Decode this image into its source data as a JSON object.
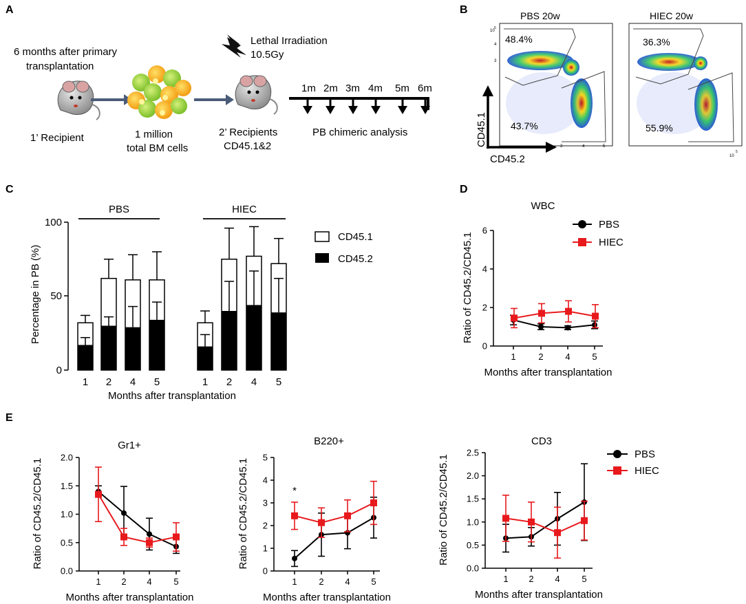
{
  "panels": {
    "a": "A",
    "b": "B",
    "c": "C",
    "d": "D",
    "e": "E"
  },
  "schematic": {
    "primary_note_line1": "6 months after primary",
    "primary_note_line2": "transplantation",
    "recipient1": "1’ Recipient",
    "cells_line1": "1 million",
    "cells_line2": "total BM cells",
    "irradiation_line1": "Lethal Irradiation",
    "irradiation_line2": "10.5Gy",
    "recipient2_line1": "2’ Recipients",
    "recipient2_line2": "CD45.1&2",
    "timepoints": [
      "1m",
      "2m",
      "3m",
      "4m",
      "5m",
      "6m"
    ],
    "analysis": "PB chimeric analysis"
  },
  "flow": {
    "plots": [
      {
        "title": "PBS 20w",
        "top_gate": "48.4%",
        "bottom_gate": "43.7%"
      },
      {
        "title": "HIEC 20w",
        "top_gate": "36.3%",
        "bottom_gate": "55.9%"
      }
    ],
    "y_axis": "CD45.1",
    "x_axis": "CD45.2",
    "axis_ticks_y": [
      "10",
      "5",
      "4",
      "3"
    ],
    "axis_ticks_x": [
      "3",
      "4",
      "5",
      "10",
      "5"
    ]
  },
  "chart_data": [
    {
      "panel": "C",
      "type": "bar",
      "ylabel": "Percentage in PB (%)",
      "xlabel": "Months after transplantation",
      "ylim": [
        0,
        100
      ],
      "yticks": [
        "0",
        "50",
        "100"
      ],
      "groups": [
        {
          "name": "PBS",
          "categories": [
            "1",
            "2",
            "4",
            "5"
          ],
          "cd452": [
            17,
            30,
            29,
            34
          ],
          "cd452_err": [
            5,
            6,
            14,
            12
          ],
          "cd451_total": [
            32,
            62,
            61,
            61
          ],
          "cd451_total_err": [
            5,
            13,
            17,
            19
          ]
        },
        {
          "name": "HIEC",
          "categories": [
            "1",
            "2",
            "4",
            "5"
          ],
          "cd452": [
            16,
            40,
            44,
            39
          ],
          "cd452_err": [
            8,
            20,
            23,
            23
          ],
          "cd451_total": [
            32,
            75,
            77,
            72
          ],
          "cd451_total_err": [
            8,
            21,
            20,
            17
          ]
        }
      ],
      "legend": [
        "CD45.1",
        "CD45.2"
      ]
    },
    {
      "panel": "D",
      "type": "line",
      "title": "WBC",
      "ylabel": "Ratio of CD45.2/CD45.1",
      "xlabel": "Months after transplantation",
      "x": [
        "1",
        "2",
        "4",
        "5"
      ],
      "ylim": [
        0,
        6
      ],
      "yticks": [
        "0",
        "2",
        "4",
        "6"
      ],
      "series": [
        {
          "name": "PBS",
          "color": "#000000",
          "values": [
            1.35,
            1.0,
            0.95,
            1.1
          ],
          "err": [
            0.25,
            0.15,
            0.1,
            0.2
          ]
        },
        {
          "name": "HIEC",
          "color": "#e8191c",
          "values": [
            1.45,
            1.7,
            1.8,
            1.55
          ],
          "err": [
            0.5,
            0.5,
            0.55,
            0.6
          ]
        }
      ]
    },
    {
      "panel": "E",
      "type": "line",
      "title": "Gr1+",
      "ylabel": "Ratio of CD45.2/CD45.1",
      "xlabel": "Months after transplantation",
      "x": [
        "1",
        "2",
        "4",
        "5"
      ],
      "ylim": [
        0,
        2.0
      ],
      "yticks": [
        "0.0",
        "0.5",
        "1.0",
        "1.5",
        "2.0"
      ],
      "series": [
        {
          "name": "PBS",
          "color": "#000000",
          "values": [
            1.4,
            1.02,
            0.65,
            0.43
          ],
          "err": [
            0.1,
            0.47,
            0.28,
            0.12
          ]
        },
        {
          "name": "HIEC",
          "color": "#e8191c",
          "values": [
            1.35,
            0.6,
            0.5,
            0.6
          ],
          "err": [
            0.48,
            0.15,
            0.08,
            0.25
          ]
        }
      ]
    },
    {
      "panel": "E",
      "type": "line",
      "title": "B220+",
      "ylabel": "Ratio of CD45.2/CD45.1",
      "xlabel": "Months after transplantation",
      "x": [
        "1",
        "2",
        "4",
        "5"
      ],
      "ylim": [
        0,
        5
      ],
      "yticks": [
        "0",
        "1",
        "2",
        "3",
        "4",
        "5"
      ],
      "annotation": "*",
      "series": [
        {
          "name": "PBS",
          "color": "#000000",
          "values": [
            0.55,
            1.6,
            1.68,
            2.35
          ],
          "err": [
            0.35,
            0.95,
            0.7,
            0.9
          ]
        },
        {
          "name": "HIEC",
          "color": "#e8191c",
          "values": [
            2.43,
            2.13,
            2.43,
            3.0
          ],
          "err": [
            0.6,
            0.65,
            0.7,
            0.95
          ]
        }
      ]
    },
    {
      "panel": "E",
      "type": "line",
      "title": "CD3",
      "ylabel": "Ratio of CD45.2/CD45.1",
      "xlabel": "Months after transplantation",
      "x": [
        "1",
        "2",
        "4",
        "5"
      ],
      "ylim": [
        0,
        2.5
      ],
      "yticks": [
        "0.0",
        "0.5",
        "1.0",
        "1.5",
        "2.0",
        "2.5"
      ],
      "series": [
        {
          "name": "PBS",
          "color": "#000000",
          "values": [
            0.65,
            0.68,
            1.07,
            1.43
          ],
          "err": [
            0.3,
            0.2,
            0.57,
            0.83
          ]
        },
        {
          "name": "HIEC",
          "color": "#e8191c",
          "values": [
            1.08,
            1.0,
            0.77,
            1.03
          ],
          "err": [
            0.5,
            0.43,
            0.55,
            0.42
          ]
        }
      ]
    }
  ]
}
